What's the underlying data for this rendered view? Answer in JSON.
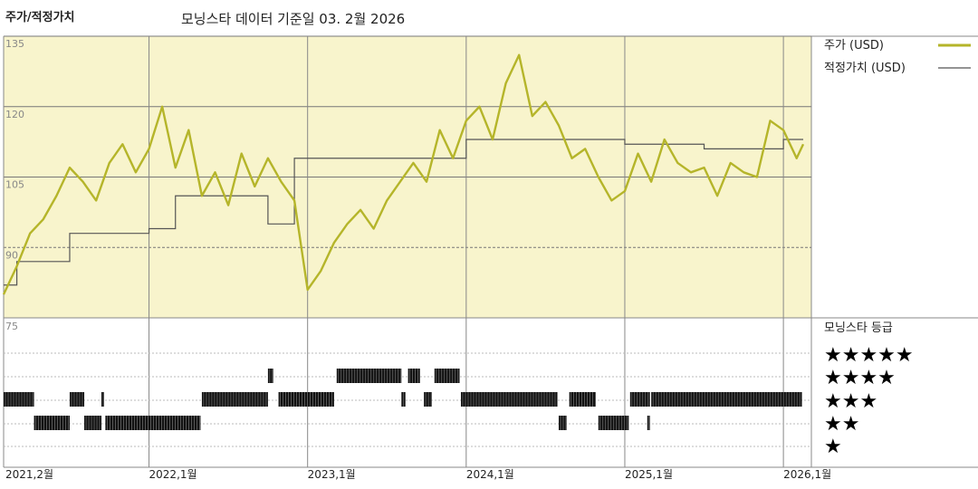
{
  "header": {
    "title": "주가/적정가치",
    "subtitle": "모닝스타 데이터 기준일 03. 2월 2026"
  },
  "legend": {
    "price_label": "주가 (USD)",
    "fair_label": "적정가치 (USD)",
    "rating_title": "모닝스타 등급"
  },
  "colors": {
    "price": "#b5b52a",
    "fair": "#555555",
    "panel_bg": "#f8f4cc",
    "bar": "#111111"
  },
  "chart_data": [
    {
      "type": "line",
      "title": "주가/적정가치",
      "y_ticks": [
        135,
        120,
        105,
        90
      ],
      "ylim": [
        75,
        135
      ],
      "x_ticks": [
        "2021,2월",
        "2022,1월",
        "2023,1월",
        "2024,1월",
        "2025,1월",
        "2026,1월"
      ],
      "x_tick_months": [
        0,
        11,
        23,
        35,
        47,
        59
      ],
      "xlim_months": [
        0,
        60.5
      ],
      "series": [
        {
          "name": "주가 (USD)",
          "months": [
            0,
            1,
            2,
            3,
            4,
            5,
            6,
            7,
            8,
            9,
            10,
            11,
            12,
            13,
            14,
            15,
            16,
            17,
            18,
            19,
            20,
            21,
            22,
            23,
            24,
            25,
            26,
            27,
            28,
            29,
            30,
            31,
            32,
            33,
            34,
            35,
            36,
            37,
            38,
            39,
            40,
            41,
            42,
            43,
            44,
            45,
            46,
            47,
            48,
            49,
            50,
            51,
            52,
            53,
            54,
            55,
            56,
            57,
            58,
            59,
            60,
            60.5
          ],
          "values": [
            80,
            86,
            93,
            96,
            101,
            107,
            104,
            100,
            108,
            112,
            106,
            111,
            120,
            107,
            115,
            101,
            106,
            99,
            110,
            103,
            109,
            104,
            100,
            81,
            85,
            91,
            95,
            98,
            94,
            100,
            104,
            108,
            104,
            115,
            109,
            117,
            120,
            113,
            125,
            131,
            118,
            121,
            116,
            109,
            111,
            105,
            100,
            102,
            110,
            104,
            113,
            108,
            106,
            107,
            101,
            108,
            106,
            105,
            117,
            115,
            109,
            112
          ]
        },
        {
          "name": "적정가치 (USD)",
          "months": [
            0,
            1,
            1,
            5,
            5,
            11,
            11,
            13,
            13,
            20,
            20,
            22,
            22,
            35,
            35,
            47,
            47,
            53,
            53,
            59,
            59,
            60.5
          ],
          "values": [
            82,
            82,
            87,
            87,
            93,
            93,
            94,
            94,
            101,
            101,
            95,
            95,
            109,
            109,
            113,
            113,
            112,
            112,
            111,
            111,
            113,
            113
          ]
        }
      ]
    },
    {
      "type": "bar",
      "title": "모닝스타 등급",
      "rating_levels": [
        "★★★★★",
        "★★★★",
        "★★★",
        "★★",
        "★"
      ],
      "segments": [
        {
          "stars": 3,
          "from": 0.0,
          "to": 2.3
        },
        {
          "stars": 2,
          "from": 2.3,
          "to": 5.0
        },
        {
          "stars": 3,
          "from": 5.0,
          "to": 6.1
        },
        {
          "stars": 2,
          "from": 6.1,
          "to": 7.4
        },
        {
          "stars": 3,
          "from": 7.4,
          "to": 7.6
        },
        {
          "stars": 2,
          "from": 7.7,
          "to": 14.9
        },
        {
          "stars": 3,
          "from": 15.0,
          "to": 20.0
        },
        {
          "stars": 4,
          "from": 20.0,
          "to": 20.4
        },
        {
          "stars": 3,
          "from": 20.8,
          "to": 25.0
        },
        {
          "stars": 4,
          "from": 25.2,
          "to": 30.1
        },
        {
          "stars": 3,
          "from": 30.1,
          "to": 30.4
        },
        {
          "stars": 4,
          "from": 30.6,
          "to": 31.5
        },
        {
          "stars": 3,
          "from": 31.8,
          "to": 32.4
        },
        {
          "stars": 4,
          "from": 32.6,
          "to": 34.5
        },
        {
          "stars": 3,
          "from": 34.6,
          "to": 41.9
        },
        {
          "stars": 2,
          "from": 42.0,
          "to": 42.6
        },
        {
          "stars": 3,
          "from": 42.8,
          "to": 44.8
        },
        {
          "stars": 2,
          "from": 45.0,
          "to": 47.3
        },
        {
          "stars": 3,
          "from": 47.4,
          "to": 48.9
        },
        {
          "stars": 2,
          "from": 48.7,
          "to": 48.9
        },
        {
          "stars": 3,
          "from": 49.0,
          "to": 60.4
        }
      ]
    }
  ]
}
